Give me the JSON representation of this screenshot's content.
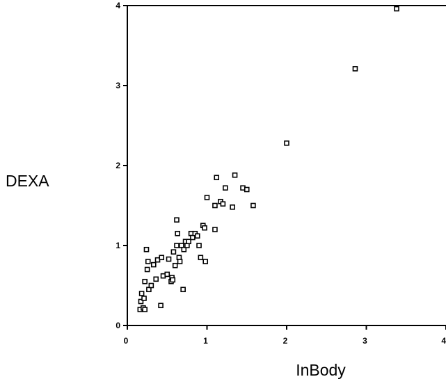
{
  "chart_data": {
    "type": "scatter",
    "title": "",
    "xlabel": "InBody",
    "ylabel": "DEXA",
    "xlim": [
      0,
      4
    ],
    "ylim": [
      0,
      4
    ],
    "x_ticks": [
      "0",
      "1",
      "2",
      "3",
      "4"
    ],
    "y_ticks": [
      "0",
      "1",
      "2",
      "3",
      "4"
    ],
    "grid": false,
    "legend": "none",
    "marker": "open-square",
    "series": [
      {
        "points": [
          [
            0.16,
            0.2
          ],
          [
            0.2,
            0.22
          ],
          [
            0.22,
            0.2
          ],
          [
            0.17,
            0.3
          ],
          [
            0.21,
            0.34
          ],
          [
            0.18,
            0.4
          ],
          [
            0.22,
            0.55
          ],
          [
            0.27,
            0.45
          ],
          [
            0.3,
            0.5
          ],
          [
            0.36,
            0.58
          ],
          [
            0.42,
            0.25
          ],
          [
            0.25,
            0.7
          ],
          [
            0.26,
            0.8
          ],
          [
            0.33,
            0.76
          ],
          [
            0.38,
            0.82
          ],
          [
            0.43,
            0.85
          ],
          [
            0.45,
            0.62
          ],
          [
            0.5,
            0.64
          ],
          [
            0.52,
            0.83
          ],
          [
            0.55,
            0.55
          ],
          [
            0.56,
            0.6
          ],
          [
            0.57,
            0.57
          ],
          [
            0.58,
            0.92
          ],
          [
            0.6,
            0.75
          ],
          [
            0.62,
            1.0
          ],
          [
            0.63,
            1.15
          ],
          [
            0.65,
            0.85
          ],
          [
            0.66,
            0.8
          ],
          [
            0.68,
            1.0
          ],
          [
            0.7,
            0.45
          ],
          [
            0.71,
            0.95
          ],
          [
            0.73,
            1.05
          ],
          [
            0.75,
            1.0
          ],
          [
            0.77,
            1.05
          ],
          [
            0.8,
            1.15
          ],
          [
            0.82,
            1.1
          ],
          [
            0.85,
            1.15
          ],
          [
            0.88,
            1.12
          ],
          [
            0.9,
            1.0
          ],
          [
            0.92,
            0.85
          ],
          [
            0.95,
            1.25
          ],
          [
            0.97,
            1.22
          ],
          [
            0.98,
            0.8
          ],
          [
            0.62,
            1.32
          ],
          [
            0.24,
            0.95
          ],
          [
            1.0,
            1.6
          ],
          [
            1.1,
            1.5
          ],
          [
            1.1,
            1.2
          ],
          [
            1.12,
            1.85
          ],
          [
            1.17,
            1.55
          ],
          [
            1.2,
            1.52
          ],
          [
            1.23,
            1.72
          ],
          [
            1.32,
            1.48
          ],
          [
            1.35,
            1.88
          ],
          [
            1.45,
            1.72
          ],
          [
            1.5,
            1.7
          ],
          [
            1.58,
            1.5
          ],
          [
            2.0,
            2.28
          ],
          [
            2.86,
            3.21
          ],
          [
            3.38,
            3.96
          ]
        ]
      }
    ]
  }
}
